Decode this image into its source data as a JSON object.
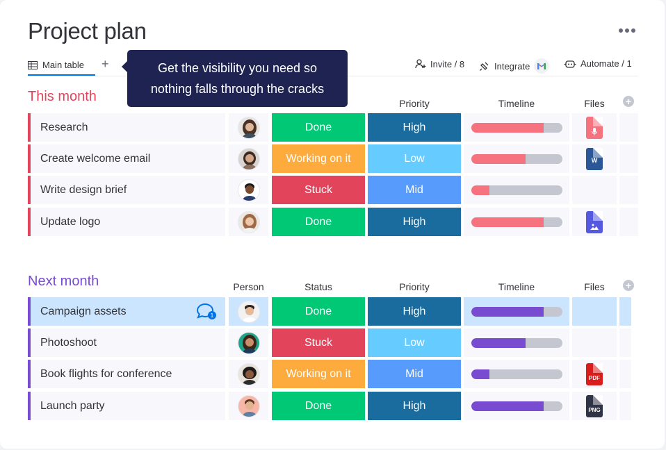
{
  "page": {
    "title": "Project plan"
  },
  "tabs": {
    "main_label": "Main table",
    "add_label": "+"
  },
  "toolbar": {
    "invite_label": "Invite / 8",
    "integrate_label": "Integrate",
    "automate_label": "Automate / 1"
  },
  "tooltip": {
    "line1": "Get the visibility you need so",
    "line2": "nothing falls through the cracks"
  },
  "colors": {
    "done": "#00c875",
    "working": "#fdab3d",
    "stuck": "#e2445c",
    "high": "#1a6b9e",
    "low": "#66ccff",
    "mid": "#579bfc",
    "this_month": "#e2445c",
    "next_month": "#784bd1",
    "timeline_this": "#f6727e",
    "timeline_next": "#784bd1"
  },
  "groups": [
    {
      "title": "This month",
      "columns": {
        "priority": "Priority",
        "timeline": "Timeline",
        "files": "Files"
      },
      "rows": [
        {
          "name": "Research",
          "status": "Done",
          "priority": "High",
          "timeline_progress": 0.8,
          "file": "audio-file"
        },
        {
          "name": "Create welcome email",
          "status": "Working on it",
          "priority": "Low",
          "timeline_progress": 0.6,
          "file": "word-file"
        },
        {
          "name": "Write design brief",
          "status": "Stuck",
          "priority": "Mid",
          "timeline_progress": 0.2,
          "file": ""
        },
        {
          "name": "Update logo",
          "status": "Done",
          "priority": "High",
          "timeline_progress": 0.8,
          "file": "image-file"
        }
      ]
    },
    {
      "title": "Next month",
      "columns": {
        "person": "Person",
        "status": "Status",
        "priority": "Priority",
        "timeline": "Timeline",
        "files": "Files"
      },
      "rows": [
        {
          "name": "Campaign assets",
          "status": "Done",
          "priority": "High",
          "timeline_progress": 0.8,
          "file": "",
          "comments": "1"
        },
        {
          "name": "Photoshoot",
          "status": "Stuck",
          "priority": "Low",
          "timeline_progress": 0.6,
          "file": ""
        },
        {
          "name": "Book flights for conference",
          "status": "Working on it",
          "priority": "Mid",
          "timeline_progress": 0.2,
          "file": "PDF"
        },
        {
          "name": "Launch party",
          "status": "Done",
          "priority": "High",
          "timeline_progress": 0.8,
          "file": "PNG"
        }
      ]
    }
  ]
}
